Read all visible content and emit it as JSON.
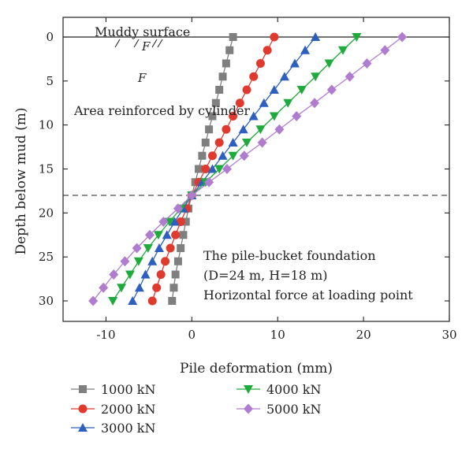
{
  "chart_data": {
    "type": "line",
    "xlabel": "Pile deformation (mm)",
    "ylabel": "Depth below mud (m)",
    "xlim": [
      -15,
      30
    ],
    "ylim": [
      0,
      32
    ],
    "x_ticks": [
      -10,
      0,
      10,
      20,
      30
    ],
    "y_ticks": [
      0,
      5,
      10,
      15,
      20,
      25,
      30
    ],
    "y_inverted": true,
    "grid": false,
    "legend_position": "bottom",
    "reference_lines": [
      {
        "orientation": "horizontal",
        "y": 0,
        "style": "solid"
      },
      {
        "orientation": "horizontal",
        "y": 18,
        "style": "dashed"
      }
    ],
    "annotations": {
      "muddy_surface": "Muddy surface",
      "reinforced_area": "Area reinforced by cylinder",
      "foundation_line1": "The pile-bucket foundation",
      "foundation_line2": "(D=24 m, H=18 m)",
      "foundation_line3": "Horizontal force at loading point",
      "symbol1": "F",
      "symbol2": "F"
    },
    "depths": [
      0,
      1.5,
      3,
      4.5,
      6,
      7.5,
      9,
      10.5,
      12,
      13.5,
      15,
      16.5,
      18,
      19.5,
      21,
      22.5,
      24,
      25.5,
      27,
      28.5,
      30
    ],
    "series": [
      {
        "name": "1000 kN",
        "color": "#7f7f7f",
        "marker": "square",
        "x": [
          4.8,
          4.4,
          4.0,
          3.6,
          3.2,
          2.8,
          2.4,
          2.0,
          1.6,
          1.2,
          0.8,
          0.4,
          0.0,
          -0.4,
          -0.7,
          -1.0,
          -1.3,
          -1.6,
          -1.9,
          -2.1,
          -2.3
        ]
      },
      {
        "name": "2000 kN",
        "color": "#e03a2f",
        "marker": "circle",
        "x": [
          9.6,
          8.8,
          8.0,
          7.2,
          6.4,
          5.6,
          4.8,
          4.0,
          3.2,
          2.4,
          1.6,
          0.8,
          0.0,
          -0.6,
          -1.3,
          -1.9,
          -2.5,
          -3.1,
          -3.6,
          -4.1,
          -4.6
        ]
      },
      {
        "name": "3000 kN",
        "color": "#2d5fbe",
        "marker": "triangle-up",
        "x": [
          14.4,
          13.2,
          12.0,
          10.8,
          9.6,
          8.4,
          7.2,
          6.0,
          4.8,
          3.6,
          2.4,
          1.2,
          0.0,
          -1.0,
          -2.0,
          -2.9,
          -3.8,
          -4.6,
          -5.4,
          -6.1,
          -6.9
        ]
      },
      {
        "name": "4000 kN",
        "color": "#1faa3c",
        "marker": "triangle-down",
        "x": [
          19.2,
          17.6,
          16.0,
          14.4,
          12.8,
          11.2,
          9.6,
          8.0,
          6.4,
          4.8,
          3.2,
          1.6,
          0.0,
          -1.3,
          -2.6,
          -3.9,
          -5.1,
          -6.2,
          -7.2,
          -8.2,
          -9.2
        ]
      },
      {
        "name": "5000 kN",
        "color": "#b07cd0",
        "marker": "diamond",
        "x": [
          24.5,
          22.5,
          20.4,
          18.4,
          16.3,
          14.3,
          12.2,
          10.2,
          8.2,
          6.1,
          4.1,
          2.0,
          0.0,
          -1.6,
          -3.3,
          -4.9,
          -6.4,
          -7.8,
          -9.1,
          -10.3,
          -11.5
        ]
      }
    ]
  }
}
